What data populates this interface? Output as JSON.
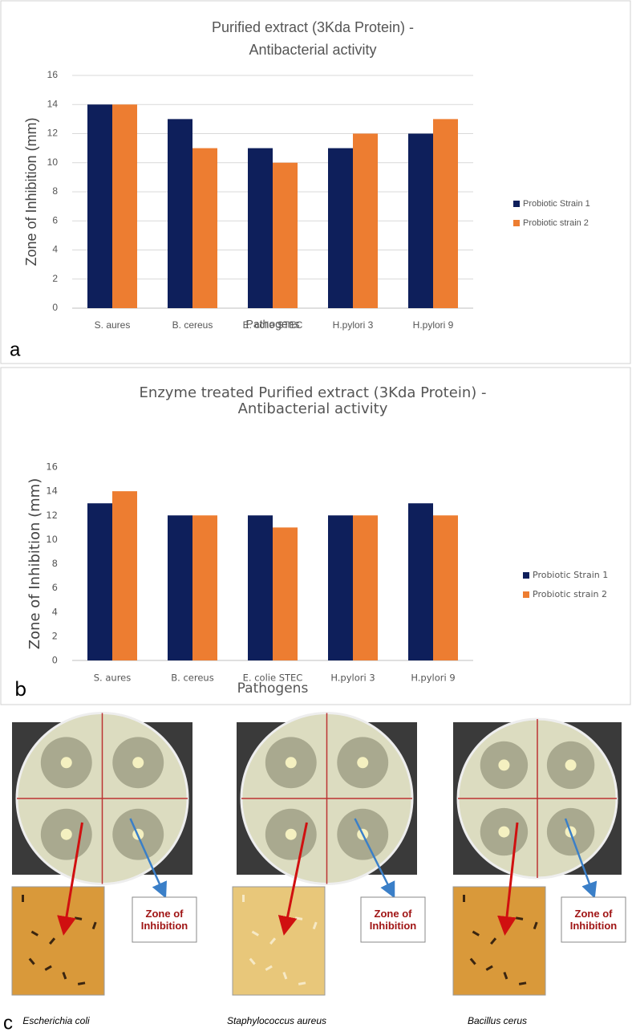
{
  "chart_data": [
    {
      "type": "bar",
      "panel_label": "a",
      "title": [
        "Purified  extract (3Kda Protein) -",
        "Antibacterial activity"
      ],
      "x_label": "Pathogens",
      "y_label": "Zone of Inhibition (mm)",
      "categories": [
        "S. aures",
        "B. cereus",
        "E. colie STEC",
        "H.pylori 3",
        "H.pylori 9"
      ],
      "series": [
        {
          "name": "Probiotic Strain 1",
          "color": "#0e1f5b",
          "values": [
            14,
            13,
            11,
            11,
            12
          ]
        },
        {
          "name": "Probiotic  strain 2",
          "color": "#ed7d31",
          "values": [
            14,
            11,
            10,
            12,
            13
          ]
        }
      ],
      "ylim": [
        0,
        16
      ],
      "yticks": [
        0,
        2,
        4,
        6,
        8,
        10,
        12,
        14,
        16
      ],
      "grid": true,
      "legend": "right"
    },
    {
      "type": "bar",
      "panel_label": "b",
      "title": [
        "Enzyme treated Purified  extract (3Kda Protein) -",
        "Antibacterial activity"
      ],
      "x_label": "Pathogens",
      "y_label": "Zone of Inhibition (mm)",
      "categories": [
        "S. aures",
        "B. cereus",
        "E. colie STEC",
        "H.pylori 3",
        "H.pylori 9"
      ],
      "series": [
        {
          "name": "Probiotic Strain 1",
          "color": "#0e1f5b",
          "values": [
            13,
            12,
            12,
            12,
            13
          ]
        },
        {
          "name": "Probiotic  strain 2",
          "color": "#ed7d31",
          "values": [
            14,
            12,
            11,
            12,
            12
          ]
        }
      ],
      "ylim": [
        0,
        16
      ],
      "yticks": [
        0,
        2,
        4,
        6,
        8,
        10,
        12,
        14,
        16
      ],
      "grid": false,
      "legend": "right"
    }
  ],
  "figure_c": {
    "panel_label": "c",
    "plates": [
      {
        "species": "Escherichia coli",
        "callout": "Zone of Inhibition"
      },
      {
        "species": "Staphylococcus aureus",
        "callout": "Zone of Inhibition"
      },
      {
        "species": "Bacillus cerus",
        "callout": "Zone of Inhibition"
      }
    ]
  }
}
